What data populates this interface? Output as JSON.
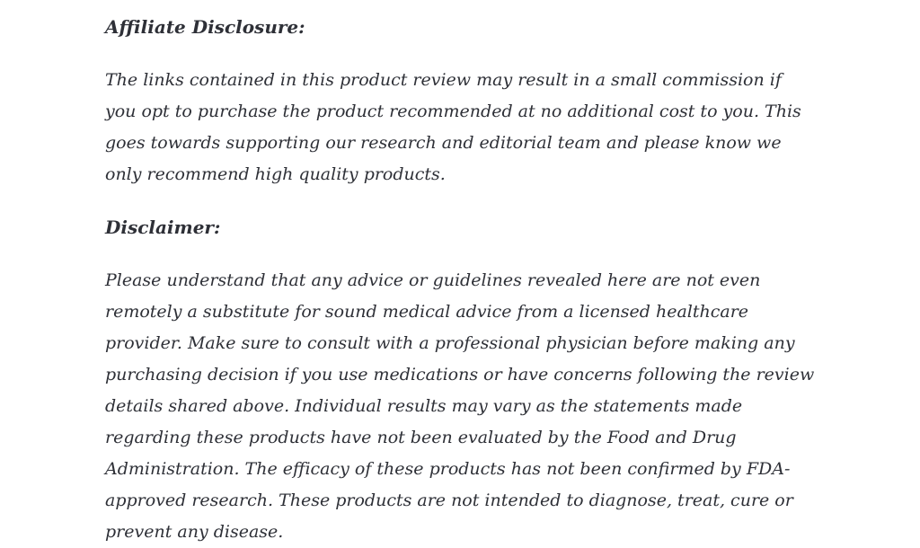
{
  "page": {
    "background_color": "#ffffff",
    "text_color": "#2e3037"
  },
  "article": {
    "sections": [
      {
        "heading": "Affiliate Disclosure:",
        "lines": [
          "The links contained in this product review may result in a small commission if",
          "you opt to purchase the product recommended at no additional cost to you. This",
          "goes towards supporting our research and editorial team and please know we",
          "only recommend high quality products."
        ]
      },
      {
        "heading": "Disclaimer:",
        "lines": [
          "Please understand that any advice or guidelines revealed here are not even",
          "remotely a substitute for sound medical advice from a licensed healthcare",
          "provider. Make sure to consult with a professional physician before making any",
          "purchasing decision if you use medications or have concerns following the review",
          "details shared above. Individual results may vary as the statements made",
          "regarding these products have not been evaluated by the Food and Drug",
          "Administration. The efficacy of these products has not been confirmed by FDA-",
          "approved research. These products are not intended to diagnose, treat, cure or",
          "prevent any disease."
        ]
      }
    ]
  }
}
